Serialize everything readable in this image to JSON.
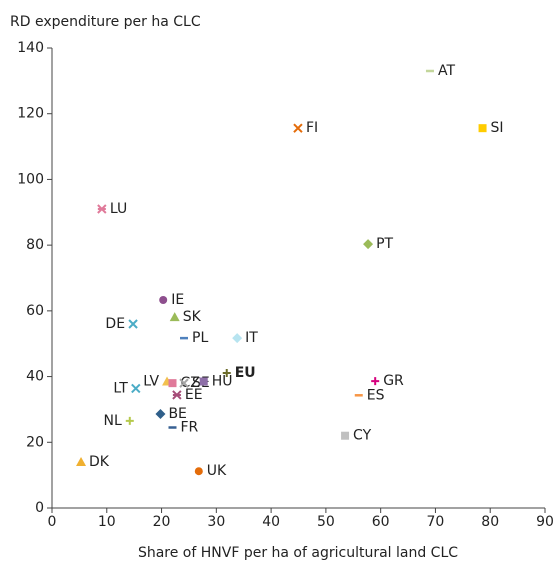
{
  "chart_data": {
    "type": "scatter",
    "ylabel": "RD expenditure per ha CLC",
    "xlabel": "Share of HNVF per ha of agricultural land CLC",
    "xlim": [
      0,
      90
    ],
    "xticks": [
      0,
      10,
      20,
      30,
      40,
      50,
      60,
      70,
      80,
      90
    ],
    "ylim": [
      0,
      140
    ],
    "yticks": [
      0,
      20,
      40,
      60,
      80,
      100,
      120,
      140
    ],
    "grid": false,
    "series": [
      {
        "name": "AT",
        "color": "#c3d69b",
        "marker": "dash",
        "x": [
          69
        ],
        "values": [
          133
        ]
      },
      {
        "name": "FI",
        "color": "#e46c0a",
        "marker": "x",
        "x": [
          44.9
        ],
        "values": [
          115.6
        ]
      },
      {
        "name": "SI",
        "color": "#ffcc00",
        "marker": "square",
        "x": [
          78.6
        ],
        "values": [
          115.6
        ]
      },
      {
        "name": "LU",
        "color": "#e07a9a",
        "marker": "star",
        "x": [
          9.1
        ],
        "values": [
          91
        ]
      },
      {
        "name": "PT",
        "color": "#9bbb59",
        "marker": "diamond",
        "x": [
          57.7
        ],
        "values": [
          80.3
        ]
      },
      {
        "name": "IE",
        "color": "#8e4f8e",
        "marker": "circle",
        "x": [
          20.3
        ],
        "values": [
          63.3
        ]
      },
      {
        "name": "SK",
        "color": "#9bbb59",
        "marker": "triangle",
        "x": [
          22.4
        ],
        "values": [
          58.1
        ]
      },
      {
        "name": "DE",
        "color": "#4bacc6",
        "marker": "x",
        "x": [
          14.8
        ],
        "values": [
          56
        ]
      },
      {
        "name": "PL",
        "color": "#4f81bd",
        "marker": "dash",
        "x": [
          24.1
        ],
        "values": [
          51.7
        ]
      },
      {
        "name": "IT",
        "color": "#b7e4f0",
        "marker": "diamond",
        "x": [
          33.8
        ],
        "values": [
          51.7
        ]
      },
      {
        "name": "EU",
        "color": "#6b6b2a",
        "marker": "plus",
        "bold": true,
        "x": [
          31.9
        ],
        "values": [
          41.1
        ]
      },
      {
        "name": "LV",
        "color": "#f2c14e",
        "marker": "triangle",
        "x": [
          21
        ],
        "values": [
          38.5
        ]
      },
      {
        "name": "CZ",
        "color": "#e07a9a",
        "marker": "square",
        "x": [
          22
        ],
        "values": [
          38
        ]
      },
      {
        "name": "SE",
        "color": "#a6a6a6",
        "marker": "x",
        "x": [
          24.1
        ],
        "values": [
          38
        ]
      },
      {
        "name": "HU",
        "color": "#8e6fa8",
        "marker": "square",
        "x": [
          27.7
        ],
        "values": [
          38.5
        ]
      },
      {
        "name": "EE",
        "color": "#a64d79",
        "marker": "star",
        "x": [
          22.8
        ],
        "values": [
          34.4
        ]
      },
      {
        "name": "LT",
        "color": "#4bacc6",
        "marker": "x",
        "x": [
          15.3
        ],
        "values": [
          36.4
        ]
      },
      {
        "name": "BE",
        "color": "#2f5f8a",
        "marker": "diamond",
        "x": [
          19.8
        ],
        "values": [
          28.6
        ]
      },
      {
        "name": "NL",
        "color": "#b5c94c",
        "marker": "plus",
        "x": [
          14.2
        ],
        "values": [
          26.5
        ]
      },
      {
        "name": "FR",
        "color": "#376092",
        "marker": "dash",
        "x": [
          22
        ],
        "values": [
          24.5
        ]
      },
      {
        "name": "DK",
        "color": "#f0b030",
        "marker": "triangle",
        "x": [
          5.3
        ],
        "values": [
          14
        ]
      },
      {
        "name": "UK",
        "color": "#e46c0a",
        "marker": "circle",
        "x": [
          26.8
        ],
        "values": [
          11.2
        ]
      },
      {
        "name": "GR",
        "color": "#d6007e",
        "marker": "plus",
        "x": [
          59
        ],
        "values": [
          38.6
        ]
      },
      {
        "name": "ES",
        "color": "#f79646",
        "marker": "dash",
        "x": [
          56
        ],
        "values": [
          34.3
        ]
      },
      {
        "name": "CY",
        "color": "#c0c0c0",
        "marker": "square",
        "x": [
          53.5
        ],
        "values": [
          22
        ]
      }
    ]
  }
}
